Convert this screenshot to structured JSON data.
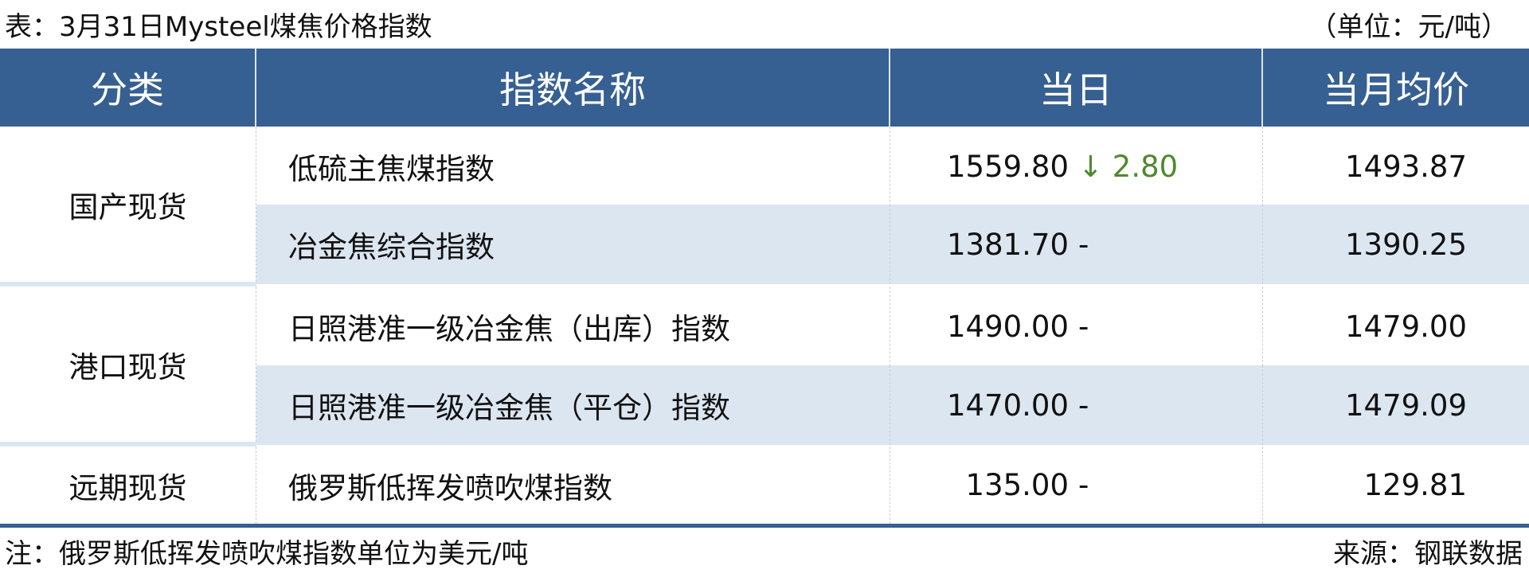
{
  "title": "表：3月31日Mysteel煤焦价格指数",
  "unit": "（单位：元/吨）",
  "colors": {
    "header_bg": "#376092",
    "alt_row_bg": "#dce6f1",
    "down": "#4e8a2e"
  },
  "headers": [
    "分类",
    "指数名称",
    "当日",
    "当月均价"
  ],
  "categories": [
    "国产现货",
    "港口现货",
    "远期现货"
  ],
  "rows": [
    {
      "name": "低硫主焦煤指数",
      "today": "1559.80",
      "change_arrow": "↓",
      "change": "2.80",
      "month_avg": "1493.87"
    },
    {
      "name": "冶金焦综合指数",
      "today": "1381.70",
      "change_arrow": "",
      "change": "-",
      "month_avg": "1390.25"
    },
    {
      "name": "日照港准一级冶金焦（出库）指数",
      "today": "1490.00",
      "change_arrow": "",
      "change": "-",
      "month_avg": "1479.00"
    },
    {
      "name": "日照港准一级冶金焦（平仓）指数",
      "today": "1470.00",
      "change_arrow": "",
      "change": "-",
      "month_avg": "1479.09"
    },
    {
      "name": "俄罗斯低挥发喷吹煤指数",
      "today": "135.00",
      "change_arrow": "",
      "change": "-",
      "month_avg": "129.81"
    }
  ],
  "note": "注：俄罗斯低挥发喷吹煤指数单位为美元/吨",
  "source": "来源：钢联数据"
}
